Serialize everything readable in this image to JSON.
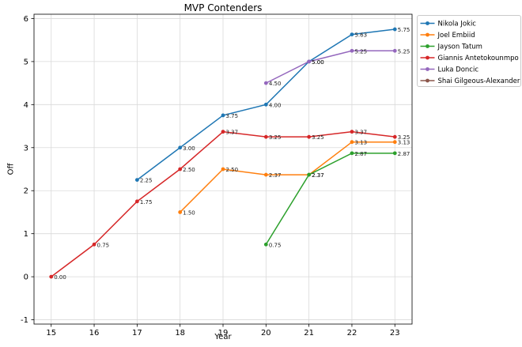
{
  "chart_data": {
    "type": "line",
    "title": "MVP Contenders",
    "xlabel": "Year",
    "ylabel": "Off",
    "xlim": [
      14.6,
      23.4
    ],
    "ylim": [
      -1.1,
      6.1
    ],
    "x_ticks": [
      15,
      16,
      17,
      18,
      19,
      20,
      21,
      22,
      23
    ],
    "y_ticks": [
      -1,
      0,
      1,
      2,
      3,
      4,
      5,
      6
    ],
    "grid": true,
    "background": "#ffffff",
    "grid_color": "#d9d9d9",
    "legend_position": "outside-right",
    "point_labels": true,
    "series": [
      {
        "name": "Nikola Jokic",
        "color": "#1f77b4",
        "x": [
          17,
          18,
          19,
          20,
          21,
          22,
          23
        ],
        "y": [
          2.25,
          3.0,
          3.75,
          4.0,
          5.0,
          5.63,
          5.75
        ]
      },
      {
        "name": "Joel Embiid",
        "color": "#ff7f0e",
        "x": [
          18,
          19,
          20,
          21,
          22,
          23
        ],
        "y": [
          1.5,
          2.5,
          2.37,
          2.37,
          3.13,
          3.13
        ]
      },
      {
        "name": "Jayson Tatum",
        "color": "#2ca02c",
        "x": [
          20,
          21,
          22,
          23
        ],
        "y": [
          0.75,
          2.37,
          2.87,
          2.87
        ]
      },
      {
        "name": "Giannis Antetokounmpo",
        "color": "#d62728",
        "x": [
          15,
          16,
          17,
          18,
          19,
          20,
          21,
          22,
          23
        ],
        "y": [
          0.0,
          0.75,
          1.75,
          2.5,
          3.37,
          3.25,
          3.25,
          3.37,
          3.25
        ]
      },
      {
        "name": "Luka Doncic",
        "color": "#9467bd",
        "x": [
          20,
          21,
          22,
          23
        ],
        "y": [
          4.5,
          5.0,
          5.25,
          5.25
        ]
      },
      {
        "name": "Shai Gilgeous-Alexander",
        "color": "#8c564b",
        "x": [],
        "y": []
      }
    ]
  }
}
